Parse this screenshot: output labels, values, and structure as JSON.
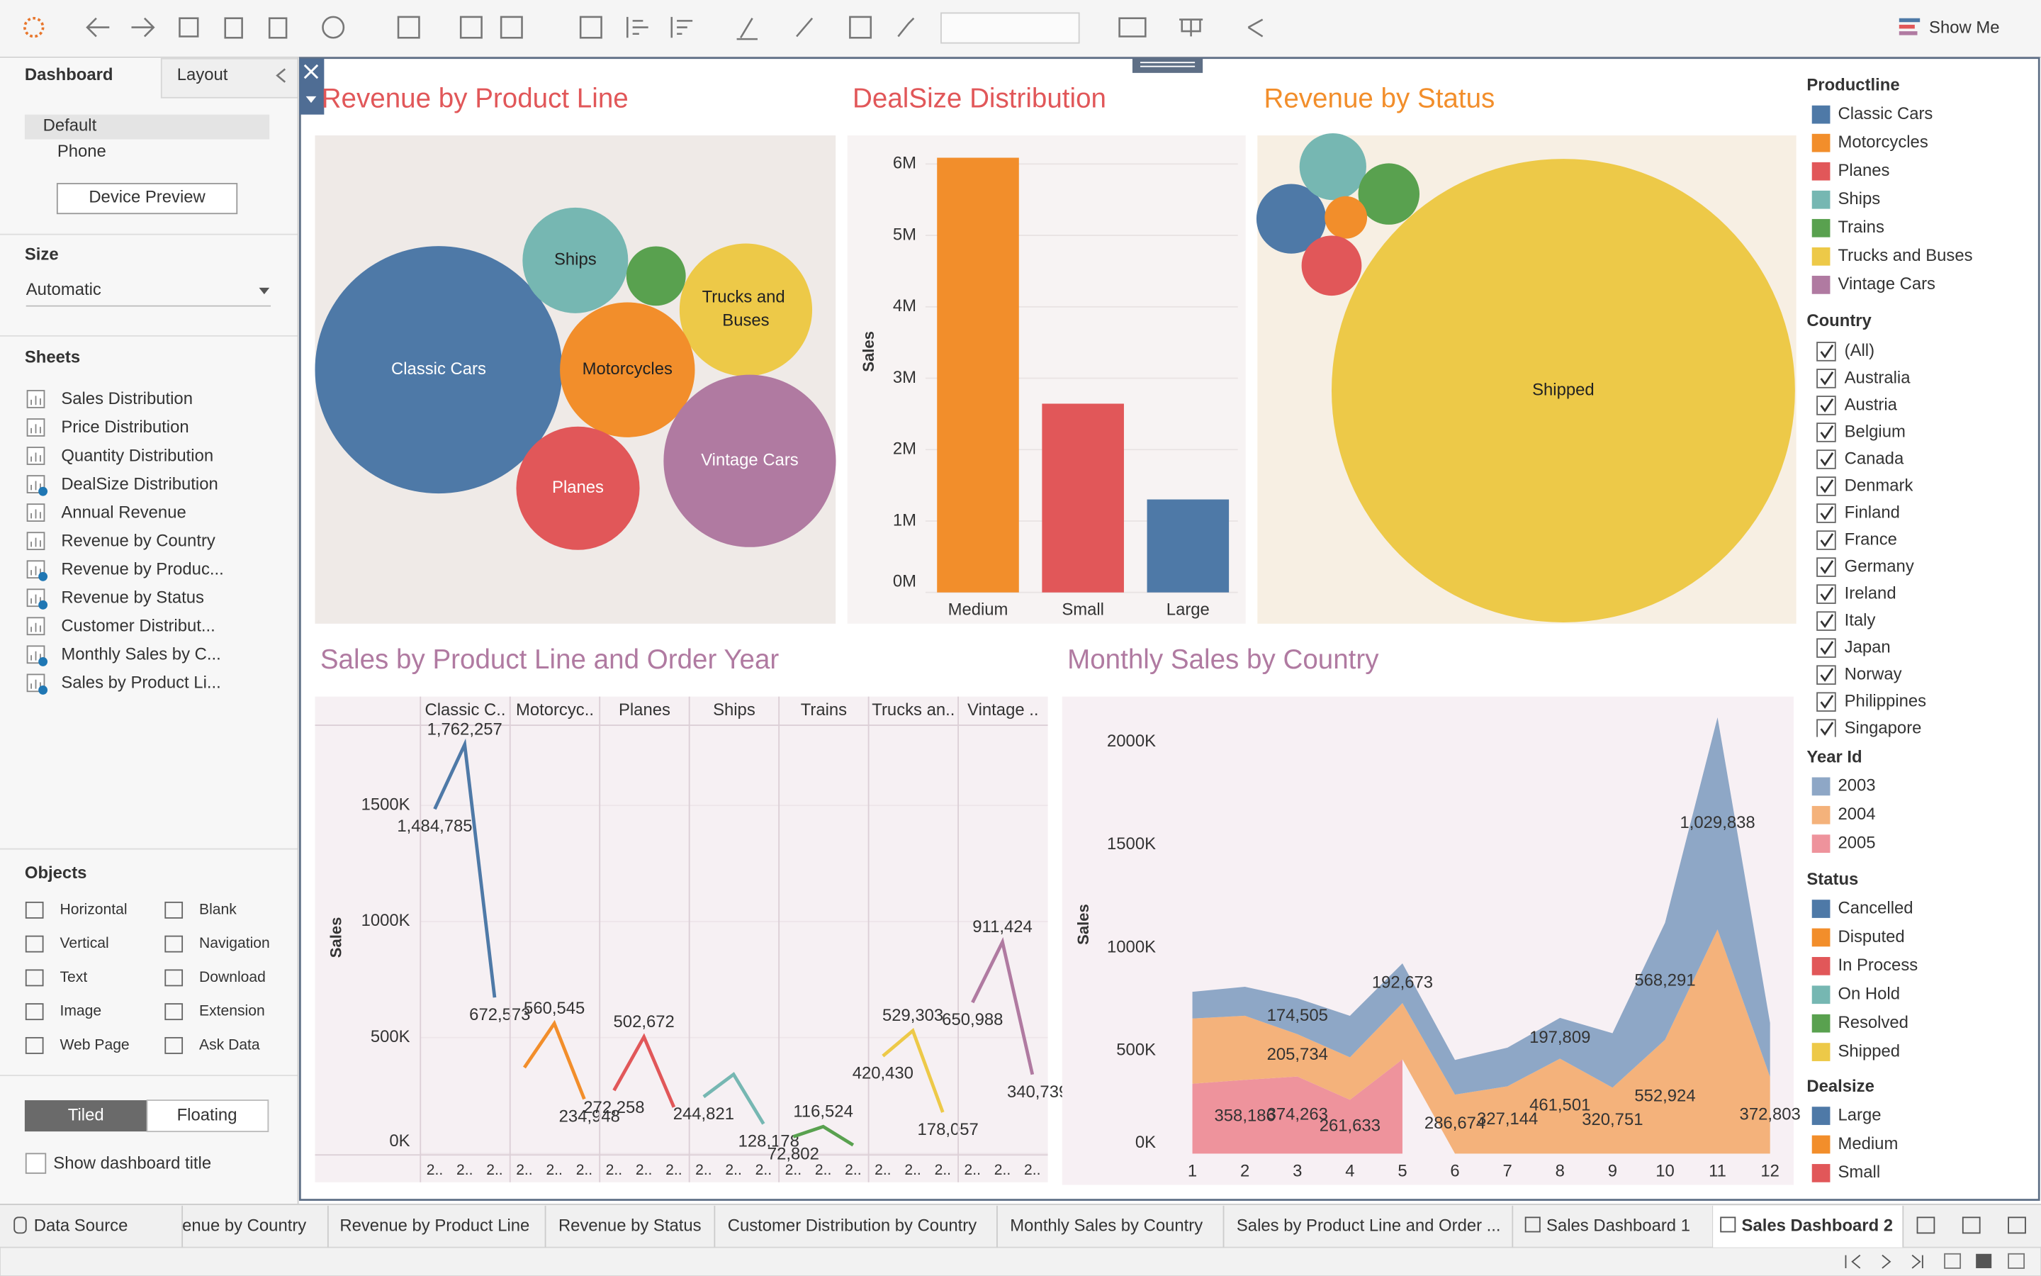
{
  "toolbar": {
    "show_me": "Show Me"
  },
  "sidebar": {
    "tabs": [
      "Dashboard",
      "Layout"
    ],
    "devices": [
      "Default",
      "Phone"
    ],
    "device_preview": "Device Preview",
    "size_title": "Size",
    "size_value": "Automatic",
    "sheets_title": "Sheets",
    "sheets": [
      "Sales Distribution",
      "Price Distribution",
      "Quantity Distribution",
      "DealSize Distribution",
      "Annual Revenue",
      "Revenue by Country",
      "Revenue by Produc...",
      "Revenue by Status",
      "Customer Distribut...",
      "Monthly Sales by C...",
      "Sales by Product Li..."
    ],
    "objects_title": "Objects",
    "objects": [
      "Horizontal",
      "Blank",
      "Vertical",
      "Navigation",
      "Text",
      "Download",
      "Image",
      "Extension",
      "Web Page",
      "Ask Data"
    ],
    "layout_modes": [
      "Tiled",
      "Floating"
    ],
    "show_title": "Show dashboard title"
  },
  "legends": [
    {
      "title": "Productline",
      "items": [
        "Classic Cars",
        "Motorcycles",
        "Planes",
        "Ships",
        "Trains",
        "Trucks and Buses",
        "Vintage Cars"
      ],
      "colors": [
        "#4e79a7",
        "#f28e2b",
        "#e15759",
        "#76b7b2",
        "#59a14f",
        "#edc948",
        "#b07aa1"
      ]
    },
    {
      "title": "Country",
      "items": [
        "(All)",
        "Australia",
        "Austria",
        "Belgium",
        "Canada",
        "Denmark",
        "Finland",
        "France",
        "Germany",
        "Ireland",
        "Italy",
        "Japan",
        "Norway",
        "Philippines",
        "Singapore"
      ]
    },
    {
      "title": "Status",
      "items": [
        "Cancelled",
        "Disputed",
        "In Process",
        "On Hold",
        "Resolved",
        "Shipped"
      ],
      "colors": [
        "#4e79a7",
        "#f28e2b",
        "#e15759",
        "#76b7b2",
        "#59a14f",
        "#edc948"
      ]
    },
    {
      "title": "Dealsize",
      "items": [
        "Large",
        "Medium",
        "Small"
      ],
      "colors": [
        "#4e79a7",
        "#f28e2b",
        "#e15759"
      ]
    }
  ],
  "year_legend_title": "Year Id",
  "tabs": [
    "Data Source",
    "enue by Country",
    "Revenue by Product Line",
    "Revenue by Status",
    "Customer Distribution by Country",
    "Monthly Sales by Country",
    "Sales by Product Line and Order ...",
    "Sales Dashboard 1",
    "Sales Dashboard 2"
  ],
  "chart_data": [
    {
      "type": "bubble",
      "title": "Revenue by Product Line",
      "categories": [
        "Classic Cars",
        "Ships",
        null,
        "Trucks and Buses",
        "Motorcycles",
        "Planes",
        "Vintage Cars"
      ],
      "values": [
        3919616,
        714437,
        226243,
        1127790,
        1166388,
        975004,
        1903151
      ],
      "colors": [
        "#4e79a7",
        "#76b7b2",
        "#59a14f",
        "#edc948",
        "#f28e2b",
        "#e15759",
        "#b07aa1"
      ]
    },
    {
      "type": "bar",
      "title": "DealSize Distribution",
      "y_label": "Sales",
      "categories": [
        "Medium",
        "Small",
        "Large"
      ],
      "values": [
        6087432,
        2643077,
        1302119
      ],
      "colors": [
        "#f28e2b",
        "#e15759",
        "#4e79a7"
      ],
      "ylim": [
        0,
        6400000
      ],
      "yticks": [
        {
          "value": 0,
          "label": "0M"
        },
        {
          "value": 1000000,
          "label": "1M"
        },
        {
          "value": 2000000,
          "label": "2M"
        },
        {
          "value": 3000000,
          "label": "3M"
        },
        {
          "value": 4000000,
          "label": "4M"
        },
        {
          "value": 5000000,
          "label": "5M"
        },
        {
          "value": 6000000,
          "label": "6M"
        }
      ],
      "grid": true
    },
    {
      "type": "bubble",
      "title": "Revenue by Status",
      "categories": [
        "Shipped",
        null,
        null,
        null,
        null,
        null
      ],
      "values": [
        8617345,
        194487,
        178979,
        150718,
        72213,
        144730
      ],
      "colors": [
        "#edc948",
        "#4e79a7",
        "#76b7b2",
        "#59a14f",
        "#f28e2b",
        "#e15759"
      ]
    },
    {
      "type": "line",
      "title": "Sales by Product Line and Order Year",
      "y_label": "Sales",
      "categories": [
        "2..",
        "2..",
        "2.."
      ],
      "series": [
        {
          "name": "Classic C..",
          "color": "#4e79a7",
          "values": [
            1484785,
            1762257,
            672573
          ],
          "value_labels": [
            "1,484,785",
            "1,762,257",
            "672,573"
          ]
        },
        {
          "name": "Motorcyc..",
          "color": "#f28e2b",
          "values": [
            370895,
            560545,
            234948
          ],
          "value_labels": [
            null,
            "560,545",
            "234,948"
          ]
        },
        {
          "name": "Planes",
          "color": "#e15759",
          "values": [
            272258,
            502672,
            200074
          ],
          "value_labels": [
            "272,258",
            "502,672",
            null
          ]
        },
        {
          "name": "Ships",
          "color": "#76b7b2",
          "values": [
            244821,
            341438,
            128178
          ],
          "value_labels": [
            "244,821",
            null,
            "128,178"
          ]
        },
        {
          "name": "Trains",
          "color": "#59a14f",
          "values": [
            72802,
            116524,
            36917
          ],
          "value_labels": [
            "72,802",
            "116,524",
            null
          ]
        },
        {
          "name": "Trucks an..",
          "color": "#edc948",
          "values": [
            420430,
            529303,
            178057
          ],
          "value_labels": [
            "420,430",
            "529,303",
            "178,057"
          ]
        },
        {
          "name": "Vintage ..",
          "color": "#b07aa1",
          "values": [
            650988,
            911424,
            340739
          ],
          "value_labels": [
            "650,988",
            "911,424",
            "340,739"
          ]
        }
      ],
      "ylim": [
        0,
        1840000
      ],
      "yticks": [
        {
          "value": 0,
          "label": "0K"
        },
        {
          "value": 500000,
          "label": "500K"
        },
        {
          "value": 1000000,
          "label": "1000K"
        },
        {
          "value": 1500000,
          "label": "1500K"
        }
      ],
      "grid": true
    },
    {
      "type": "area",
      "title": "Monthly Sales by Country",
      "y_label": "Sales",
      "x": [
        1,
        2,
        3,
        4,
        5,
        6,
        7,
        8,
        9,
        10,
        11,
        12
      ],
      "series": [
        {
          "name": "2003",
          "color": "#8ea7c6",
          "values": [
            129754,
            140836,
            174505,
            201610,
            192673,
            168083,
            187731,
            197809,
            263973,
            568291,
            1029838,
            261876
          ],
          "value_labels": [
            null,
            null,
            "174,505",
            null,
            "192,673",
            null,
            null,
            "197,809",
            null,
            "568,291",
            "1,029,838",
            null
          ]
        },
        {
          "name": "2004",
          "color": "#f4b27b",
          "values": [
            316577,
            311420,
            205734,
            206148,
            273438,
            286674,
            327144,
            461501,
            320751,
            552924,
            1089048,
            372803
          ],
          "value_labels": [
            null,
            null,
            "205,734",
            null,
            null,
            "286,674",
            "327,144",
            "461,501",
            "320,751",
            "552,924",
            null,
            "372,803"
          ]
        },
        {
          "name": "2005",
          "color": "#ee939c",
          "values": [
            339543,
            358186,
            374263,
            261633,
            457861,
            null,
            null,
            null,
            null,
            null,
            null,
            null
          ],
          "value_labels": [
            null,
            "358,186",
            "374,263",
            "261,633",
            null,
            null,
            null,
            null,
            null,
            null,
            null,
            null
          ]
        }
      ],
      "xlim": [
        -1.48,
        12.45
      ],
      "xticks": [
        1,
        2,
        3,
        4,
        5,
        6,
        7,
        8,
        9,
        10,
        11,
        12
      ],
      "ylim": [
        0,
        2220000
      ],
      "yticks": [
        {
          "value": 0,
          "label": "0K"
        },
        {
          "value": 500000,
          "label": "500K"
        },
        {
          "value": 1000000,
          "label": "1000K"
        },
        {
          "value": 1500000,
          "label": "1500K"
        },
        {
          "value": 2000000,
          "label": "2000K"
        }
      ],
      "grid": false
    }
  ]
}
